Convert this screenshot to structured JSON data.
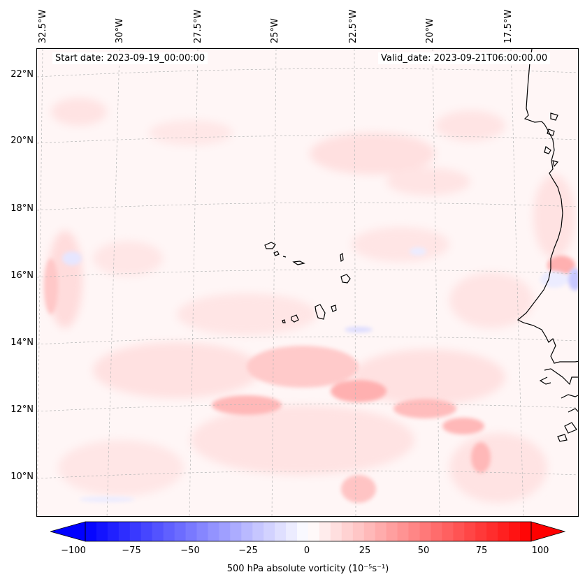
{
  "map": {
    "start_date_label": "Start date: 2023-09-19_00:00:00",
    "valid_date_label": "Valid_date: 2023-09-21T06:00:00.00",
    "latitude_labels": [
      "22°N",
      "20°N",
      "18°N",
      "16°N",
      "14°N",
      "12°N",
      "10°N"
    ],
    "longitude_labels": [
      "32.5°W",
      "30°W",
      "27.5°W",
      "25°W",
      "22.5°W",
      "20°W",
      "17.5°W"
    ],
    "field": "500 hPa absolute vorticity",
    "region": "Cabo Verde and West African coast"
  },
  "colorbar": {
    "label": "500 hPa absolute vorticity (10⁻⁵s⁻¹)",
    "ticks": [
      "−100",
      "−75",
      "−50",
      "−25",
      "0",
      "25",
      "50",
      "75",
      "100"
    ],
    "min": -100,
    "max": 100,
    "negative_color": "#0000ff",
    "neutral_color": "#ffffff",
    "positive_color": "#ff0000"
  }
}
